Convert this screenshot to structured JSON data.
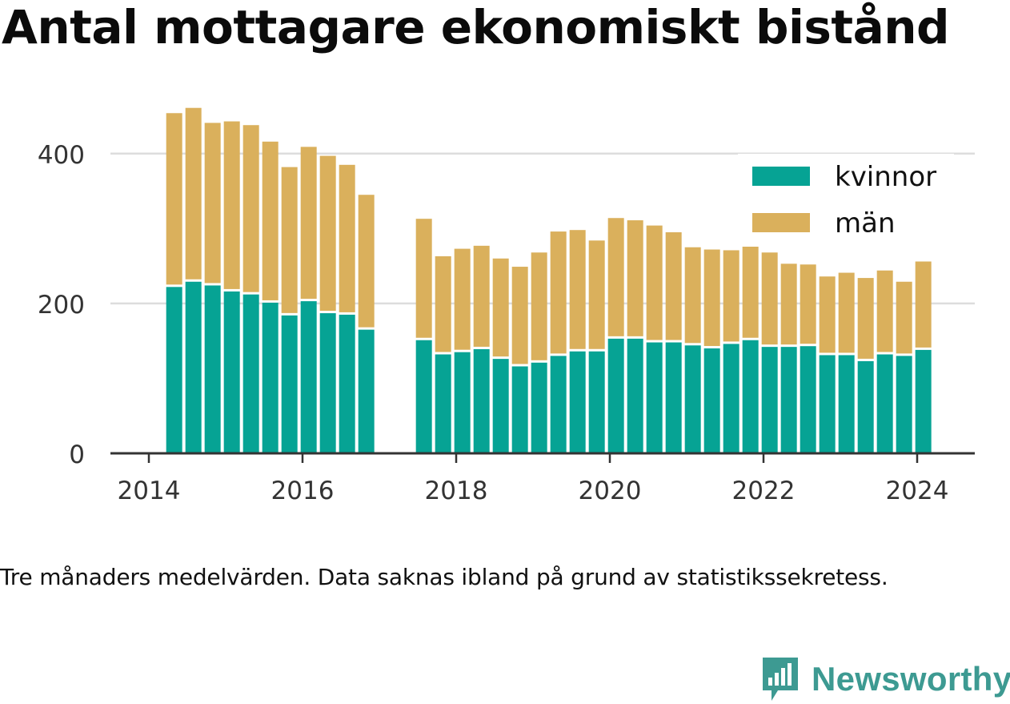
{
  "title": "Antal mottagare ekonomiskt bistånd",
  "caption": "Tre månaders medelvärden. Data saknas ibland på grund av statistikssekretess.",
  "brand": "Newsworthy",
  "colors": {
    "kvinnor": "#06a394",
    "man": "#dab05c",
    "axis": "#333333",
    "grid": "#dddddd",
    "brand": "#3d9a92"
  },
  "chart_data": {
    "type": "bar",
    "stacked": true,
    "xlim": [
      2013.5,
      2024.75
    ],
    "ylim": [
      0,
      450
    ],
    "x_ticks": [
      2014,
      2016,
      2018,
      2020,
      2022,
      2024
    ],
    "y_ticks": [
      0,
      200,
      400
    ],
    "grid": "horizontal",
    "legend_position": "top-right",
    "x": [
      2014.33,
      2014.58,
      2014.83,
      2015.08,
      2015.33,
      2015.58,
      2015.83,
      2016.08,
      2016.33,
      2016.58,
      2016.83,
      2017.58,
      2017.83,
      2018.08,
      2018.33,
      2018.58,
      2018.83,
      2019.08,
      2019.33,
      2019.58,
      2019.83,
      2020.08,
      2020.33,
      2020.58,
      2020.83,
      2021.08,
      2021.33,
      2021.58,
      2021.83,
      2022.08,
      2022.33,
      2022.58,
      2022.83,
      2023.08,
      2023.33,
      2023.58,
      2023.83,
      2024.08
    ],
    "series": [
      {
        "name": "kvinnor",
        "values": [
          222,
          229,
          224,
          216,
          212,
          201,
          184,
          203,
          187,
          185,
          165,
          151,
          132,
          135,
          139,
          126,
          116,
          121,
          130,
          136,
          136,
          153,
          153,
          148,
          148,
          144,
          140,
          146,
          151,
          142,
          142,
          143,
          131,
          131,
          123,
          132,
          130,
          138
        ]
      },
      {
        "name": "män",
        "values": [
          232,
          232,
          217,
          227,
          226,
          215,
          198,
          206,
          210,
          200,
          180,
          162,
          131,
          138,
          138,
          134,
          133,
          147,
          166,
          162,
          148,
          161,
          158,
          156,
          147,
          131,
          132,
          125,
          132,
          126,
          111,
          109,
          105,
          110,
          111,
          112,
          99,
          118
        ]
      }
    ]
  }
}
